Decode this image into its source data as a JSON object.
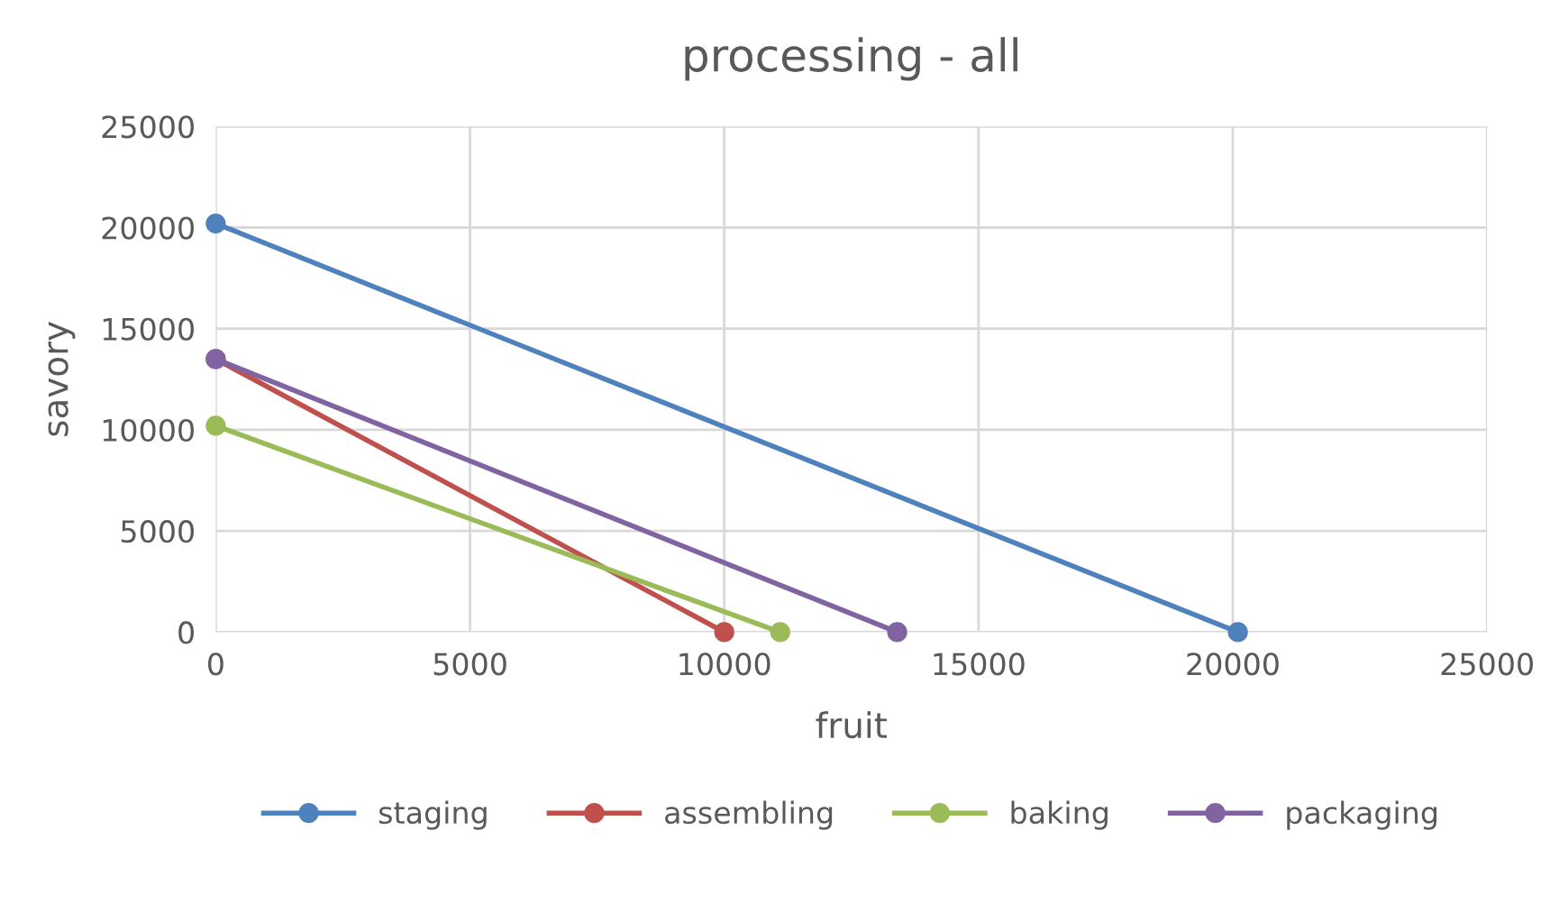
{
  "chart_data": {
    "type": "line",
    "title": "processing - all",
    "xlabel": "fruit",
    "ylabel": "savory",
    "series": [
      {
        "name": "staging",
        "color": "#4f81bd",
        "x": [
          0,
          20100
        ],
        "values": [
          20200,
          0
        ]
      },
      {
        "name": "assembling",
        "color": "#c0504d",
        "x": [
          0,
          10000
        ],
        "values": [
          13500,
          0
        ]
      },
      {
        "name": "baking",
        "color": "#9bbb59",
        "x": [
          0,
          11100
        ],
        "values": [
          10200,
          0
        ]
      },
      {
        "name": "packaging",
        "color": "#8064a2",
        "x": [
          0,
          13400
        ],
        "values": [
          13500,
          0
        ]
      }
    ],
    "xlim": [
      0,
      25000
    ],
    "xticks": [
      0,
      5000,
      10000,
      15000,
      20000,
      25000
    ],
    "ylim": [
      0,
      25000
    ],
    "yticks": [
      0,
      5000,
      10000,
      15000,
      20000,
      25000
    ],
    "grid": true,
    "legend": "bottom",
    "marker": "circle",
    "line_style": "solid"
  }
}
